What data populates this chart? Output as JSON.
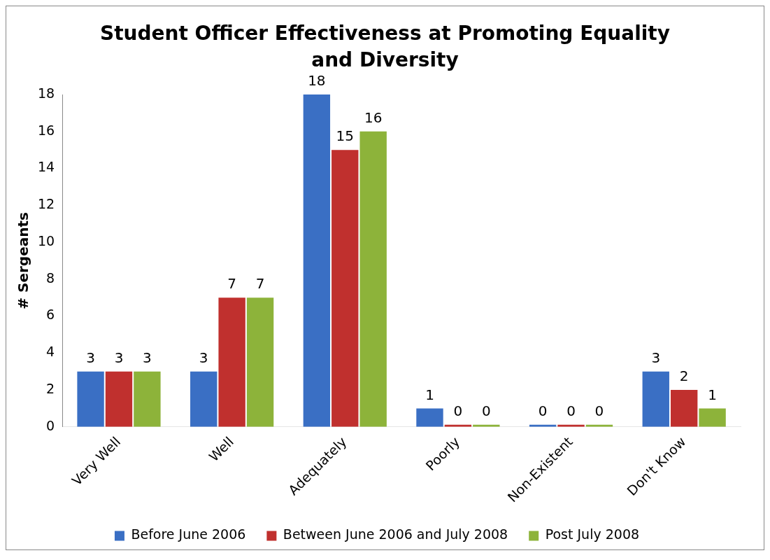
{
  "chart_data": {
    "type": "bar",
    "title": "Student Officer Effectiveness at Promoting Equality and Diversity",
    "ylabel": "# Sergeants",
    "categories": [
      "Very Well",
      "Well",
      "Adequately",
      "Poorly",
      "Non-Existent",
      "Don't Know"
    ],
    "series": [
      {
        "name": "Before June 2006",
        "color": "#3a6fc4",
        "values": [
          3,
          3,
          18,
          1,
          0,
          3
        ]
      },
      {
        "name": "Between June 2006 and July 2008",
        "color": "#c0302e",
        "values": [
          3,
          7,
          15,
          0,
          0,
          2
        ]
      },
      {
        "name": "Post July 2008",
        "color": "#8db33a",
        "values": [
          3,
          7,
          16,
          0,
          0,
          1
        ]
      }
    ],
    "ylim": [
      0,
      18
    ],
    "yticks": [
      0,
      2,
      4,
      6,
      8,
      10,
      12,
      14,
      16,
      18
    ],
    "grid": false,
    "legend": "bottom",
    "data_labels": true
  }
}
